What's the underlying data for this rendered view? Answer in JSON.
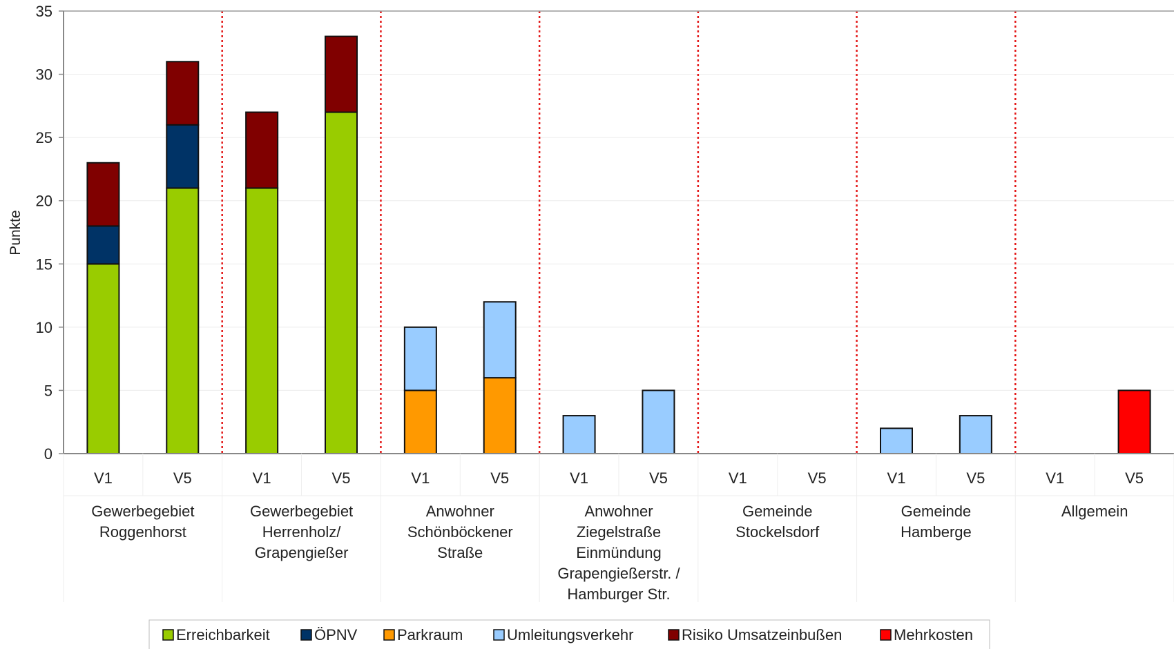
{
  "chart_data": {
    "type": "bar",
    "stacked": true,
    "ylabel": "Punkte",
    "ylim": [
      0,
      35
    ],
    "yticks": [
      0,
      5,
      10,
      15,
      20,
      25,
      30,
      35
    ],
    "grid": true,
    "legend_position": "bottom",
    "groups": [
      {
        "label_lines": [
          "Gewerbegebiet",
          "Roggenhorst"
        ],
        "bars": [
          "V1",
          "V5"
        ]
      },
      {
        "label_lines": [
          "Gewerbegebiet",
          "Herrenholz/",
          "Grapengießer"
        ],
        "bars": [
          "V1",
          "V5"
        ]
      },
      {
        "label_lines": [
          "Anwohner",
          "Schönböckener",
          "Straße"
        ],
        "bars": [
          "V1",
          "V5"
        ]
      },
      {
        "label_lines": [
          "Anwohner",
          "Ziegelstraße",
          "Einmündung",
          "Grapengießerstr. /",
          "Hamburger Str."
        ],
        "bars": [
          "V1",
          "V5"
        ]
      },
      {
        "label_lines": [
          "Gemeinde",
          "Stockelsdorf"
        ],
        "bars": [
          "V1",
          "V5"
        ]
      },
      {
        "label_lines": [
          "Gemeinde",
          "Hamberge"
        ],
        "bars": [
          "V1",
          "V5"
        ]
      },
      {
        "label_lines": [
          "Allgemein"
        ],
        "bars": [
          "V1",
          "V5"
        ]
      }
    ],
    "series": [
      {
        "name": "Erreichbarkeit",
        "color": "#99cc00",
        "values": [
          15,
          21,
          21,
          27,
          0,
          0,
          0,
          0,
          0,
          0,
          0,
          0,
          0,
          0
        ]
      },
      {
        "name": "ÖPNV",
        "color": "#003366",
        "values": [
          3,
          5,
          0,
          0,
          0,
          0,
          0,
          0,
          0,
          0,
          0,
          0,
          0,
          0
        ]
      },
      {
        "name": "Parkraum",
        "color": "#ff9900",
        "values": [
          0,
          0,
          0,
          0,
          5,
          6,
          0,
          0,
          0,
          0,
          0,
          0,
          0,
          0
        ]
      },
      {
        "name": "Umleitungsverkehr",
        "color": "#99ccff",
        "values": [
          0,
          0,
          0,
          0,
          5,
          6,
          3,
          5,
          0,
          0,
          2,
          3,
          0,
          0
        ]
      },
      {
        "name": "Risiko Umsatzeinbußen",
        "color": "#800000",
        "values": [
          5,
          5,
          6,
          6,
          0,
          0,
          0,
          0,
          0,
          0,
          0,
          0,
          0,
          0
        ]
      },
      {
        "name": "Mehrkosten",
        "color": "#ff0000",
        "values": [
          0,
          0,
          0,
          0,
          0,
          0,
          0,
          0,
          0,
          0,
          0,
          0,
          0,
          5
        ]
      }
    ],
    "separator_color": "#e41a1a"
  }
}
